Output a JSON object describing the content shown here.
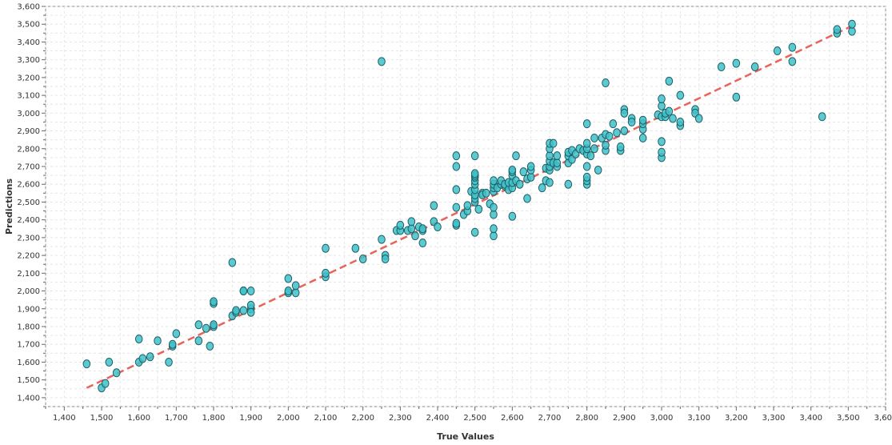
{
  "chart_data": {
    "type": "scatter",
    "xlabel": "True Values",
    "ylabel": "Predictions",
    "xlim": [
      1350,
      3600
    ],
    "ylim": [
      1350,
      3600
    ],
    "x_ticks": [
      1400,
      1500,
      1600,
      1700,
      1800,
      1900,
      2000,
      2100,
      2200,
      2300,
      2400,
      2500,
      2600,
      2700,
      2800,
      2900,
      3000,
      3100,
      3200,
      3300,
      3400,
      3500,
      3600
    ],
    "y_ticks": [
      1400,
      1500,
      1600,
      1700,
      1800,
      1900,
      2000,
      2100,
      2200,
      2300,
      2400,
      2500,
      2600,
      2700,
      2800,
      2900,
      3000,
      3100,
      3200,
      3300,
      3400,
      3500,
      3600
    ],
    "grid": true,
    "point_color": "#3fc1c9",
    "point_edge_color": "#1f5f66",
    "reference_line": {
      "from": [
        1460,
        1455
      ],
      "to": [
        3510,
        3490
      ],
      "color": "#e8645a",
      "style": "dashed"
    },
    "x": [
      1460,
      1500,
      1510,
      1520,
      1540,
      1600,
      1600,
      1610,
      1630,
      1650,
      1680,
      1690,
      1690,
      1700,
      1760,
      1760,
      1780,
      1790,
      1800,
      1800,
      1800,
      1800,
      1850,
      1850,
      1860,
      1860,
      1880,
      1880,
      1880,
      1900,
      1900,
      1900,
      1900,
      2000,
      2000,
      2000,
      2020,
      2020,
      2100,
      2100,
      2100,
      2180,
      2200,
      2250,
      2250,
      2260,
      2260,
      2290,
      2300,
      2300,
      2320,
      2330,
      2330,
      2340,
      2350,
      2360,
      2360,
      2360,
      2390,
      2390,
      2400,
      2450,
      2450,
      2450,
      2450,
      2450,
      2450,
      2470,
      2480,
      2480,
      2490,
      2500,
      2500,
      2500,
      2500,
      2500,
      2500,
      2500,
      2500,
      2500,
      2500,
      2500,
      2510,
      2520,
      2520,
      2530,
      2540,
      2550,
      2550,
      2550,
      2550,
      2550,
      2550,
      2550,
      2550,
      2560,
      2570,
      2570,
      2580,
      2580,
      2590,
      2590,
      2600,
      2600,
      2600,
      2600,
      2600,
      2600,
      2610,
      2610,
      2620,
      2630,
      2640,
      2640,
      2650,
      2650,
      2650,
      2680,
      2690,
      2690,
      2700,
      2700,
      2700,
      2700,
      2700,
      2700,
      2700,
      2710,
      2710,
      2720,
      2720,
      2720,
      2750,
      2750,
      2750,
      2750,
      2760,
      2760,
      2770,
      2780,
      2790,
      2800,
      2800,
      2800,
      2800,
      2800,
      2800,
      2800,
      2800,
      2810,
      2820,
      2820,
      2830,
      2840,
      2850,
      2850,
      2850,
      2850,
      2860,
      2870,
      2880,
      2890,
      2890,
      2900,
      2900,
      2900,
      2920,
      2920,
      2950,
      2950,
      2950,
      2950,
      2990,
      3000,
      3000,
      3000,
      3000,
      3000,
      3000,
      3010,
      3010,
      3020,
      3020,
      3030,
      3050,
      3050,
      3050,
      3090,
      3090,
      3100,
      3160,
      3200,
      3200,
      3250,
      3310,
      3350,
      3350,
      3430,
      3470,
      3470,
      3510,
      3510
    ],
    "y": [
      1590,
      1455,
      1480,
      1600,
      1540,
      1600,
      1730,
      1620,
      1630,
      1720,
      1600,
      1690,
      1700,
      1760,
      1720,
      1810,
      1790,
      1690,
      1800,
      1810,
      1930,
      1940,
      1860,
      2160,
      1880,
      1890,
      1890,
      2000,
      2000,
      1900,
      1920,
      2000,
      1880,
      1990,
      2000,
      2070,
      1990,
      2030,
      2080,
      2100,
      2240,
      2240,
      2180,
      2290,
      3290,
      2200,
      2180,
      2340,
      2340,
      2370,
      2340,
      2350,
      2390,
      2310,
      2360,
      2340,
      2350,
      2270,
      2480,
      2390,
      2360,
      2370,
      2380,
      2470,
      2570,
      2700,
      2760,
      2430,
      2450,
      2480,
      2560,
      2330,
      2500,
      2520,
      2540,
      2570,
      2600,
      2620,
      2640,
      2650,
      2660,
      2760,
      2460,
      2550,
      2540,
      2550,
      2490,
      2310,
      2350,
      2430,
      2470,
      2560,
      2580,
      2600,
      2620,
      2580,
      2600,
      2620,
      2590,
      2600,
      2570,
      2610,
      2420,
      2580,
      2610,
      2650,
      2670,
      2680,
      2620,
      2760,
      2600,
      2670,
      2520,
      2630,
      2640,
      2680,
      2700,
      2580,
      2620,
      2690,
      2610,
      2680,
      2700,
      2730,
      2760,
      2800,
      2830,
      2720,
      2830,
      2700,
      2720,
      2760,
      2600,
      2720,
      2760,
      2780,
      2740,
      2790,
      2770,
      2800,
      2790,
      2600,
      2620,
      2640,
      2700,
      2770,
      2800,
      2830,
      2940,
      2760,
      2800,
      2860,
      2680,
      2860,
      2790,
      2820,
      2880,
      3170,
      2870,
      2940,
      2890,
      2790,
      2810,
      2900,
      3020,
      3000,
      2970,
      2950,
      2860,
      2910,
      2940,
      2960,
      2990,
      2750,
      2780,
      2840,
      2980,
      3040,
      3080,
      2980,
      3000,
      3010,
      3180,
      2970,
      2930,
      2950,
      3100,
      3020,
      3000,
      2970,
      3260,
      3090,
      3280,
      3260,
      3350,
      3290,
      3370,
      2980,
      3450,
      3470,
      3460,
      3500
    ]
  }
}
